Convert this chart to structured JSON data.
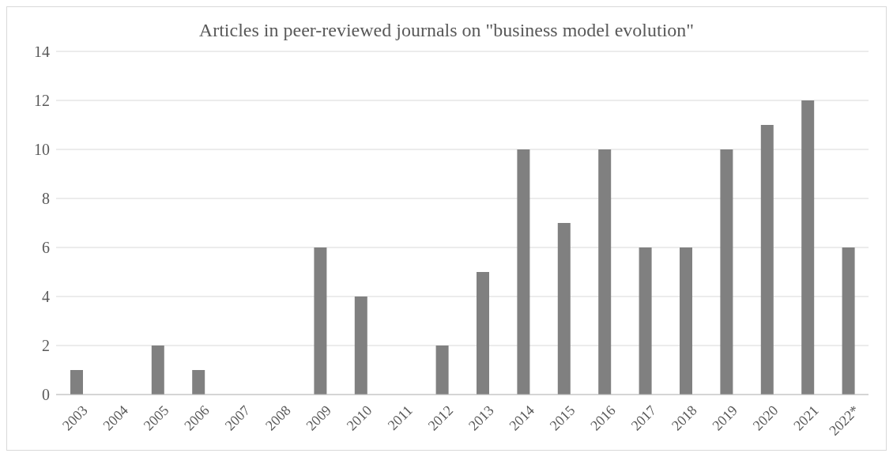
{
  "chart_data": {
    "type": "bar",
    "title": "Articles in peer-reviewed journals on \"business model evolution\"",
    "categories": [
      "2003",
      "2004",
      "2005",
      "2006",
      "2007",
      "2008",
      "2009",
      "2010",
      "2011",
      "2012",
      "2013",
      "2014",
      "2015",
      "2016",
      "2017",
      "2018",
      "2019",
      "2020",
      "2021",
      "2022*"
    ],
    "values": [
      1,
      0,
      2,
      1,
      0,
      0,
      6,
      4,
      0,
      2,
      5,
      10,
      7,
      10,
      6,
      6,
      10,
      11,
      12,
      6
    ],
    "color": "#808080",
    "ylim": [
      0,
      14
    ],
    "yticks": [
      0,
      2,
      4,
      6,
      8,
      10,
      12,
      14
    ],
    "grid": "y",
    "legend": false
  }
}
